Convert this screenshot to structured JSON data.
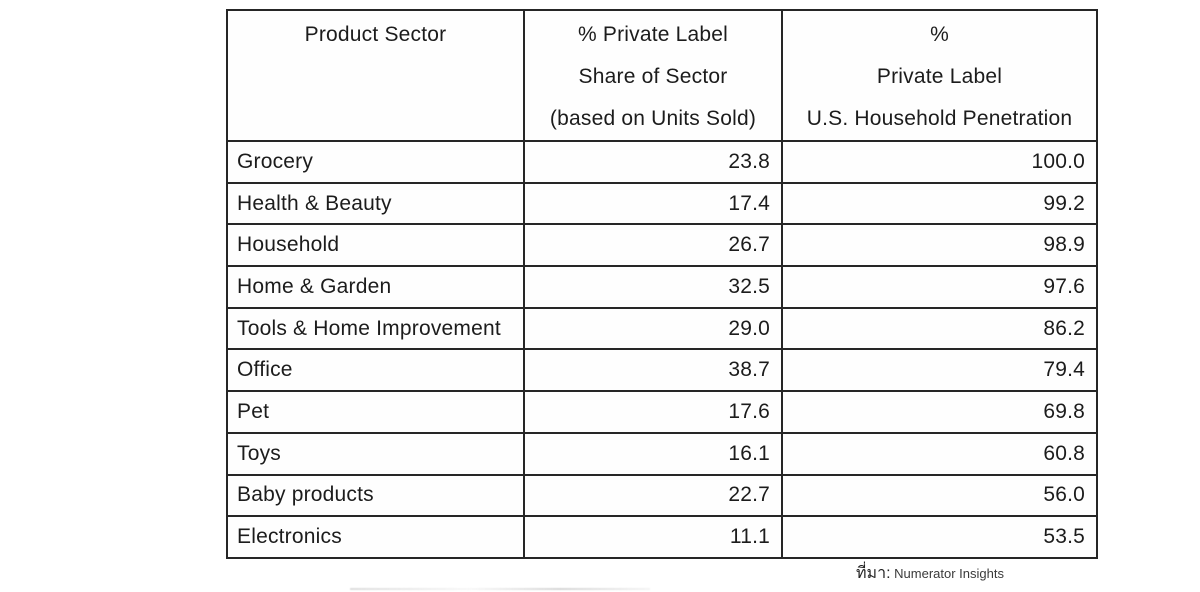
{
  "table": {
    "columns": [
      {
        "header_lines": [
          "Product Sector",
          "",
          ""
        ]
      },
      {
        "header_lines": [
          "% Private Label",
          "Share of Sector",
          "(based on Units Sold)"
        ]
      },
      {
        "header_lines": [
          "%",
          "Private Label",
          "U.S. Household Penetration"
        ]
      }
    ],
    "rows": [
      {
        "sector": "Grocery",
        "share": "23.8",
        "penetration": "100.0"
      },
      {
        "sector": "Health & Beauty",
        "share": "17.4",
        "penetration": "99.2"
      },
      {
        "sector": "Household",
        "share": "26.7",
        "penetration": "98.9"
      },
      {
        "sector": "Home & Garden",
        "share": "32.5",
        "penetration": "97.6"
      },
      {
        "sector": "Tools & Home Improvement",
        "share": "29.0",
        "penetration": "86.2"
      },
      {
        "sector": "Office",
        "share": "38.7",
        "penetration": "79.4"
      },
      {
        "sector": "Pet",
        "share": "17.6",
        "penetration": "69.8"
      },
      {
        "sector": "Toys",
        "share": "16.1",
        "penetration": "60.8"
      },
      {
        "sector": "Baby products",
        "share": "22.7",
        "penetration": "56.0"
      },
      {
        "sector": "Electronics",
        "share": "11.1",
        "penetration": "53.5"
      }
    ]
  },
  "footer": {
    "source_label": "ที่มา:",
    "source_value": " Numerator Insights"
  },
  "colors": {
    "border": "#262626",
    "text": "#1c1c1c",
    "background": "#ffffff"
  }
}
